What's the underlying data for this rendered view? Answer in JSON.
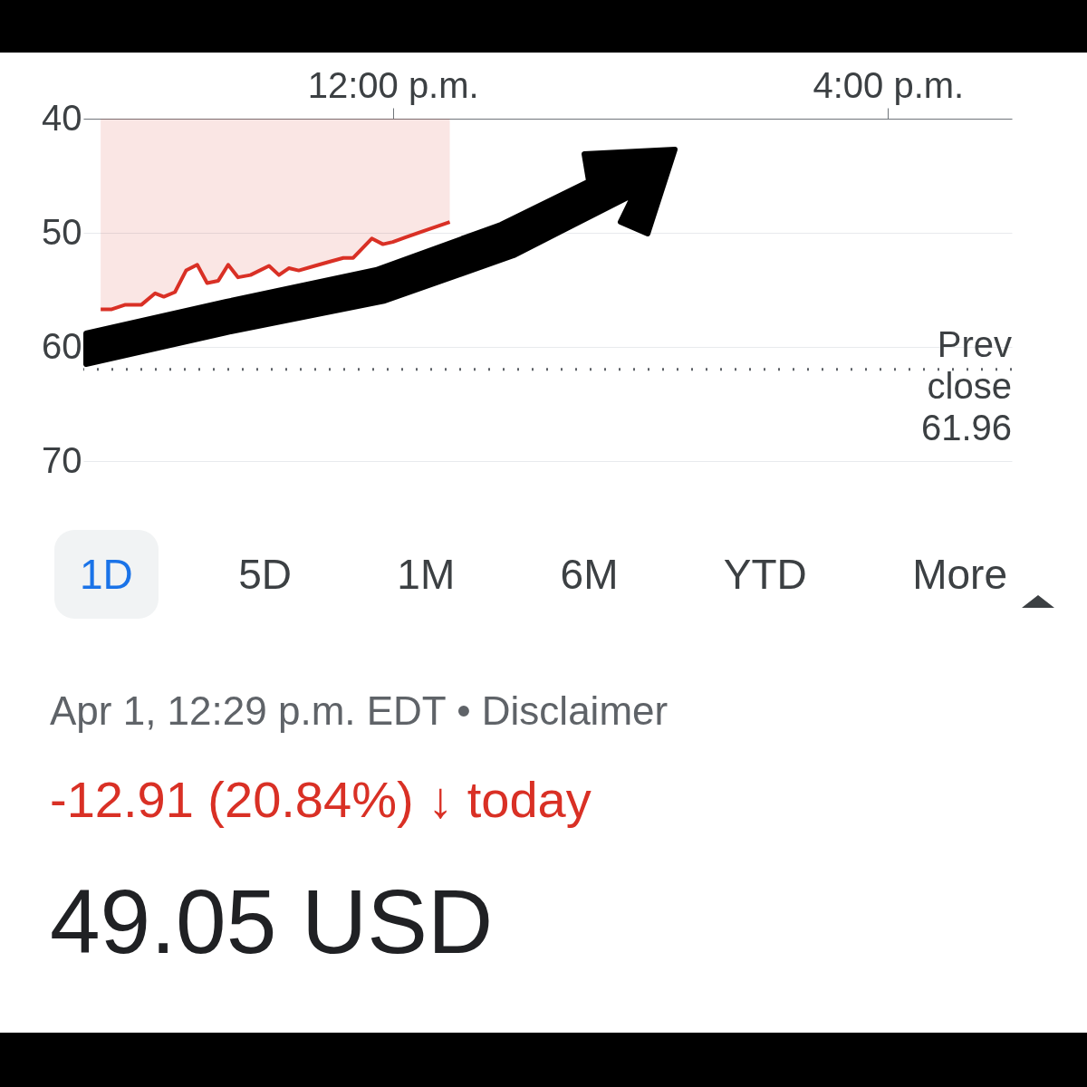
{
  "chart_data": {
    "type": "area",
    "title": "49.05 USD",
    "subtitle": "-12.91 (20.84%) ↓ today",
    "x": [
      9.64,
      9.73,
      9.84,
      9.97,
      10.08,
      10.15,
      10.24,
      10.33,
      10.42,
      10.5,
      10.59,
      10.67,
      10.75,
      10.85,
      11.0,
      11.08,
      11.16,
      11.24,
      11.37,
      11.5,
      11.6,
      11.68,
      11.83,
      11.92,
      12.0,
      12.1,
      12.46
    ],
    "series": [
      {
        "color": "#d93025",
        "values": [
          56.7,
          56.7,
          56.3,
          56.3,
          55.3,
          55.6,
          55.2,
          53.3,
          52.8,
          54.4,
          54.2,
          52.8,
          53.9,
          53.7,
          52.9,
          53.7,
          53.1,
          53.3,
          52.9,
          52.5,
          52.2,
          52.2,
          50.5,
          51.0,
          50.8,
          50.4,
          49.05
        ]
      }
    ],
    "xlim": [
      9.5,
      17
    ],
    "xticks": [
      {
        "value": 12,
        "label": "12:00 p.m."
      },
      {
        "value": 16,
        "label": "4:00 p.m."
      }
    ],
    "ylim": [
      70,
      40
    ],
    "yticks": [
      40,
      50,
      60,
      70
    ],
    "grid": "y",
    "ref_lines": [
      {
        "axis": "y",
        "value": 61.96,
        "label": "Prev close 61.96",
        "line_style": "dotted",
        "color": "#5f6368"
      }
    ],
    "annotations": [
      "1D",
      "5D",
      "1M",
      "6M",
      "YTD",
      "More",
      "Apr 1, 12:29 p.m. EDT • Disclaimer"
    ]
  }
}
